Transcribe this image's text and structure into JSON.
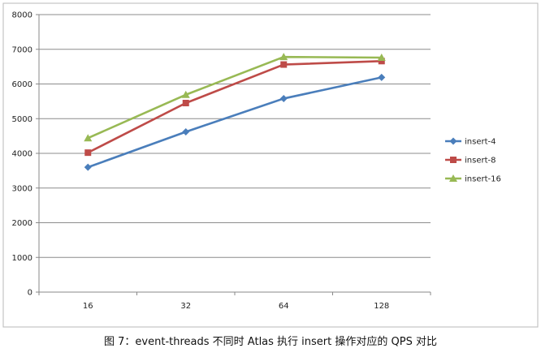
{
  "chart_data": {
    "type": "line",
    "categories": [
      "16",
      "32",
      "64",
      "128"
    ],
    "ylim": [
      0,
      8000
    ],
    "yticks": [
      0,
      1000,
      2000,
      3000,
      4000,
      5000,
      6000,
      7000,
      8000
    ],
    "grid": true,
    "legend_position": "right",
    "series": [
      {
        "name": "insert-4",
        "color": "#4a7ebb",
        "marker": "diamond",
        "values": [
          3600,
          4620,
          5580,
          6190
        ]
      },
      {
        "name": "insert-8",
        "color": "#be4b48",
        "marker": "square",
        "values": [
          4020,
          5450,
          6560,
          6660
        ]
      },
      {
        "name": "insert-16",
        "color": "#98b954",
        "marker": "triangle",
        "values": [
          4440,
          5690,
          6780,
          6760
        ]
      }
    ]
  },
  "caption": "图 7：event-threads 不同时 Atlas 执行 insert 操作对应的 QPS 对比"
}
